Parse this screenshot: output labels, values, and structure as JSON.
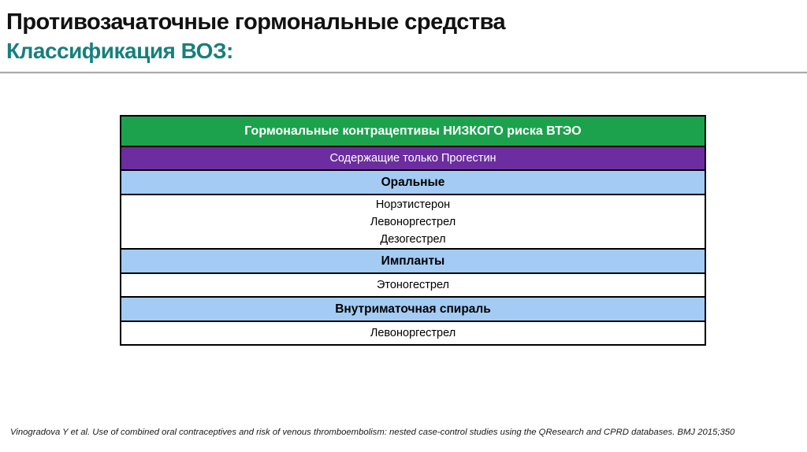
{
  "header": {
    "title": "Противозачаточные гормональные средства",
    "subtitle": "Классификация ВОЗ:",
    "subtitle_color": "#16807E"
  },
  "table": {
    "border_color": "#000000",
    "rows": [
      {
        "style": "green",
        "bg": "#1CA24D",
        "color": "#FFFFFF",
        "name": "table-header-low-risk",
        "lines": [
          "Гормональные контрацептивы НИЗКОГО риска ВТЭО"
        ]
      },
      {
        "style": "purple",
        "bg": "#6C2DA0",
        "color": "#FFFFFF",
        "name": "table-subheader-progestin-only",
        "lines": [
          "Содержащие только Прогестин"
        ]
      },
      {
        "style": "blue",
        "bg": "#A3CBF3",
        "color": "#000000",
        "name": "table-category-oral",
        "lines": [
          "Оральные"
        ]
      },
      {
        "style": "items",
        "bg": "#FFFFFF",
        "color": "#000000",
        "name": "table-items-oral",
        "lines": [
          "Норэтистерон",
          "Левоноргестрел",
          "Дезогестрел"
        ]
      },
      {
        "style": "blue",
        "bg": "#A3CBF3",
        "color": "#000000",
        "name": "table-category-implants",
        "lines": [
          "Импланты"
        ]
      },
      {
        "style": "items1",
        "bg": "#FFFFFF",
        "color": "#000000",
        "name": "table-items-implants",
        "lines": [
          "Этоногестрел"
        ]
      },
      {
        "style": "blue",
        "bg": "#A3CBF3",
        "color": "#000000",
        "name": "table-category-iud",
        "lines": [
          "Внутриматочная спираль"
        ]
      },
      {
        "style": "items1",
        "bg": "#FFFFFF",
        "color": "#000000",
        "name": "table-items-iud",
        "lines": [
          "Левоноргестрел"
        ]
      }
    ]
  },
  "footer": {
    "citation": "Vinogradova Y et al. Use of combined oral contraceptives and risk of venous thromboembolism: nested case-control studies using the QResearch and CPRD databases. BMJ 2015;350"
  }
}
